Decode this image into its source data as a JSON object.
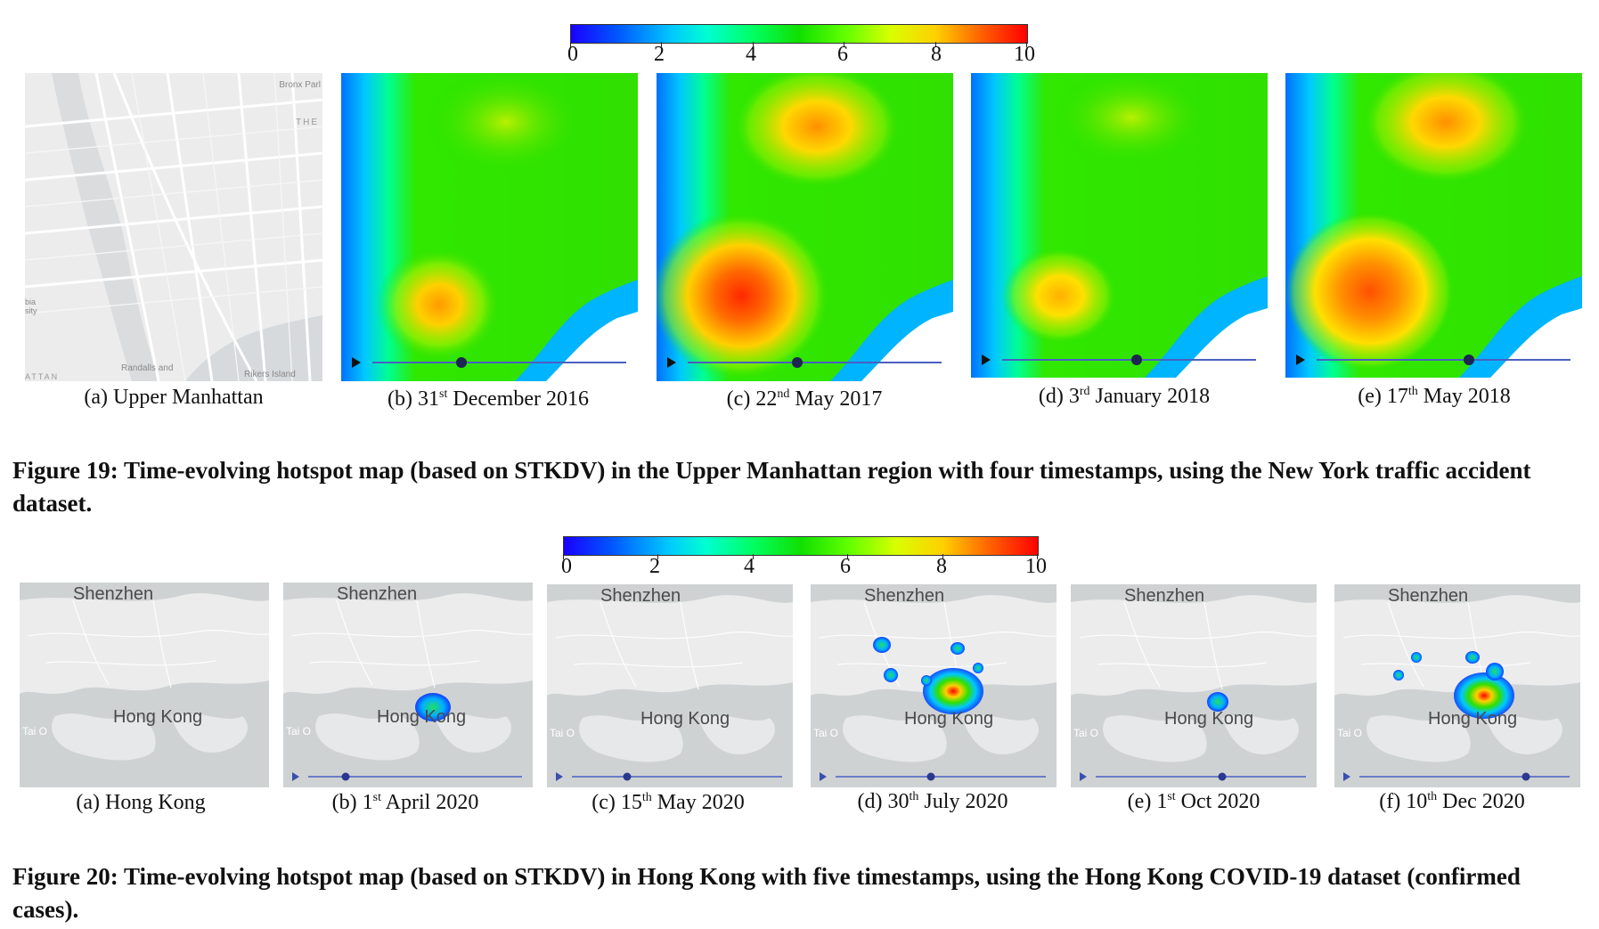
{
  "figure19": {
    "colorbar": {
      "ticks": [
        "0",
        "2",
        "4",
        "6",
        "8",
        "10"
      ]
    },
    "map_labels": {
      "bronx_park": "Bronx Parl",
      "the": "THE",
      "columbia": "bia\nsity",
      "randalls": "Randalls and",
      "rikers": "Rikers Island",
      "attan": "ATTAN"
    },
    "panels": [
      {
        "prefix": "(a) Upper Manhattan",
        "sup": "",
        "suffix": ""
      },
      {
        "prefix": "(b) 31",
        "sup": "st",
        "suffix": " December 2016"
      },
      {
        "prefix": "(c) 22",
        "sup": "nd",
        "suffix": " May 2017"
      },
      {
        "prefix": "(d) 3",
        "sup": "rd",
        "suffix": " January 2018"
      },
      {
        "prefix": "(e) 17",
        "sup": "th",
        "suffix": " May 2018"
      }
    ],
    "caption": "Figure 19: Time-evolving hotspot map (based on STKDV) in the Upper Manhattan region with four timestamps, using the New York traffic accident dataset."
  },
  "figure20": {
    "colorbar": {
      "ticks": [
        "0",
        "2",
        "4",
        "6",
        "8",
        "10"
      ]
    },
    "map_labels": {
      "shenzhen": "Shenzhen",
      "hong_kong": "Hong Kong",
      "tai_o": "Tai O"
    },
    "panels": [
      {
        "prefix": "(a) Hong Kong",
        "sup": "",
        "suffix": ""
      },
      {
        "prefix": "(b) 1",
        "sup": "st",
        "suffix": " April 2020"
      },
      {
        "prefix": "(c) 15",
        "sup": "th",
        "suffix": " May 2020"
      },
      {
        "prefix": "(d) 30",
        "sup": "th",
        "suffix": " July 2020"
      },
      {
        "prefix": "(e) 1",
        "sup": "st",
        "suffix": " Oct 2020"
      },
      {
        "prefix": "(f) 10",
        "sup": "th",
        "suffix": " Dec 2020"
      }
    ],
    "caption": "Figure 20: Time-evolving hotspot map (based on STKDV) in Hong Kong with five timestamps, using the Hong Kong COVID-19 dataset (confirmed cases)."
  },
  "colors": {
    "map_bg": "#ececec",
    "hk_bg": "#cfd2d3",
    "water": "#d6d9db",
    "slider": "#4a5fc1"
  }
}
